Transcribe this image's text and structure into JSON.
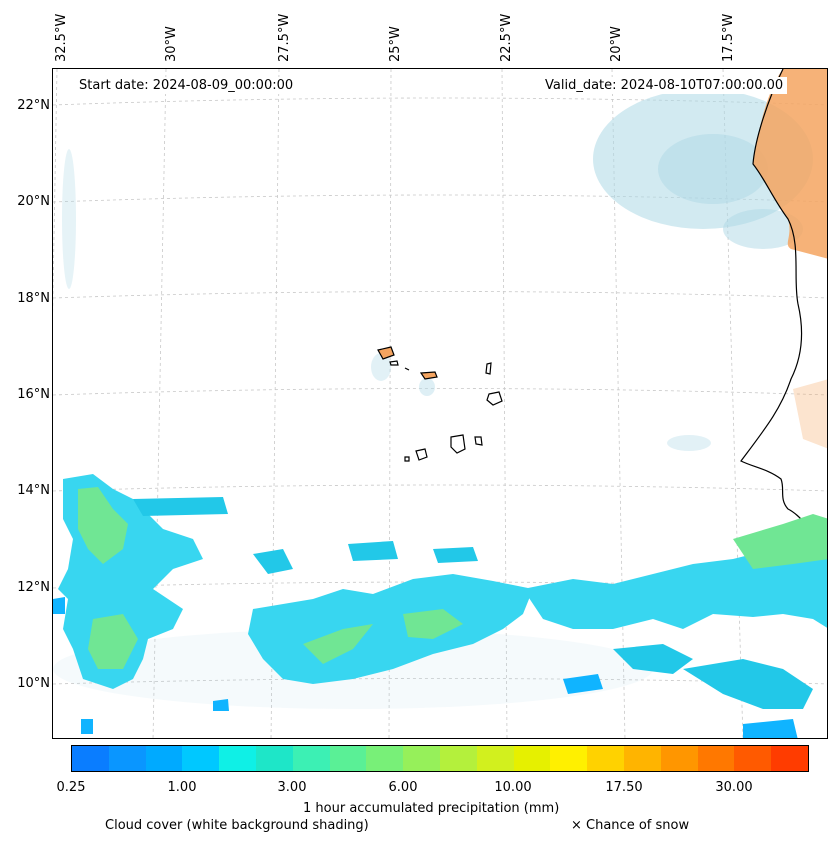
{
  "header": {
    "start_date": "Start date: 2024-08-09_00:00:00",
    "valid_date": "Valid_date: 2024-08-10T07:00:00.00"
  },
  "map": {
    "lat_labels": [
      "22°N",
      "20°N",
      "18°N",
      "16°N",
      "14°N",
      "12°N",
      "10°N"
    ],
    "lon_labels": [
      "32.5°W",
      "30°W",
      "27.5°W",
      "25°W",
      "22.5°W",
      "20°W",
      "17.5°W"
    ],
    "colors": {
      "cloud": "#add8e6",
      "land_highlight": "#f4a460",
      "coast": "#000000",
      "gridline": "#b0b0b0"
    }
  },
  "colorbar": {
    "colors": [
      "#0a7dff",
      "#0a96ff",
      "#00aaff",
      "#00c8ff",
      "#0ff0e6",
      "#1ee6c8",
      "#3cf0b4",
      "#5af096",
      "#78f078",
      "#96f05a",
      "#b4f03c",
      "#d2f01e",
      "#e6f000",
      "#fff000",
      "#ffd200",
      "#ffb400",
      "#ff9600",
      "#ff7800",
      "#ff5a00",
      "#ff3c00"
    ],
    "ticks": [
      "0.25",
      "1.00",
      "3.00",
      "6.00",
      "10.00",
      "17.50",
      "30.00"
    ],
    "label": "1 hour accumulated precipitation (mm)"
  },
  "legend": {
    "cloud_cover": "Cloud cover (white background shading)",
    "snow": "× Chance of snow"
  }
}
